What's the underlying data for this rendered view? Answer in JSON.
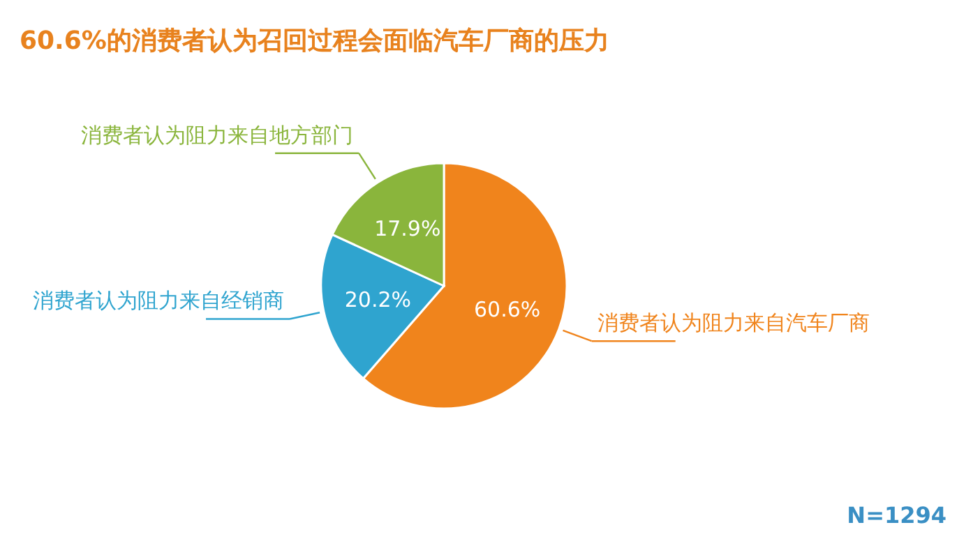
{
  "chart_data": {
    "type": "pie",
    "title": "60.6%的消费者认为召回过程会面临汽车厂商的压力",
    "categories": [
      "消费者认为阻力来自汽车厂商",
      "消费者认为阻力来自经销商",
      "消费者认为阻力来自地方部门"
    ],
    "values": [
      60.6,
      20.2,
      17.9
    ],
    "colors": [
      "#f0841c",
      "#2fa4cf",
      "#8ab53c"
    ],
    "value_labels": [
      "60.6%",
      "20.2%",
      "17.9%"
    ],
    "annotations": [
      "N=1294"
    ]
  }
}
